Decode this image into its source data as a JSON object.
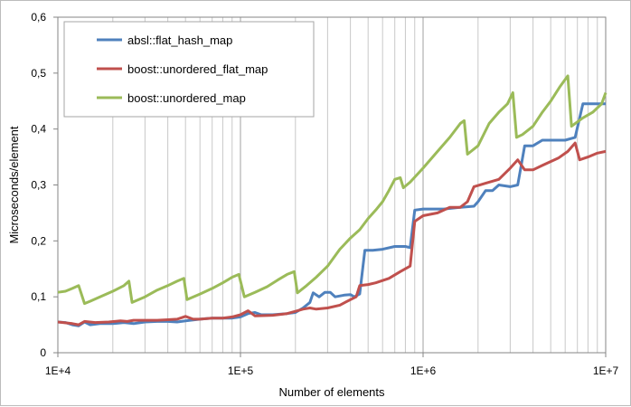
{
  "chart_data": {
    "type": "line",
    "x_scale": "log",
    "xlim": [
      10000,
      10000000
    ],
    "ylim": [
      0,
      0.6
    ],
    "xlabel": "Number of elements",
    "ylabel": "Microseconds/element",
    "x_tick_labels": [
      "1E+4",
      "1E+5",
      "1E+6",
      "1E+7"
    ],
    "y_tick_labels": [
      "0",
      "0,1",
      "0,2",
      "0,3",
      "0,4",
      "0,5",
      "0,6"
    ],
    "grid": "vertical lines at log decades and minor multiples",
    "legend_position": "top-left",
    "series": [
      {
        "name": "absl::flat_hash_map",
        "color": "#4f81bd",
        "points": [
          [
            10000,
            0.055
          ],
          [
            11000,
            0.054
          ],
          [
            12000,
            0.05
          ],
          [
            13000,
            0.048
          ],
          [
            14000,
            0.055
          ],
          [
            15000,
            0.05
          ],
          [
            17000,
            0.052
          ],
          [
            20000,
            0.052
          ],
          [
            23000,
            0.054
          ],
          [
            26000,
            0.052
          ],
          [
            30000,
            0.055
          ],
          [
            35000,
            0.056
          ],
          [
            40000,
            0.056
          ],
          [
            45000,
            0.055
          ],
          [
            50000,
            0.057
          ],
          [
            60000,
            0.06
          ],
          [
            70000,
            0.062
          ],
          [
            80000,
            0.062
          ],
          [
            90000,
            0.062
          ],
          [
            100000,
            0.064
          ],
          [
            110000,
            0.07
          ],
          [
            120000,
            0.072
          ],
          [
            130000,
            0.068
          ],
          [
            150000,
            0.068
          ],
          [
            180000,
            0.07
          ],
          [
            200000,
            0.072
          ],
          [
            220000,
            0.08
          ],
          [
            240000,
            0.09
          ],
          [
            250000,
            0.107
          ],
          [
            270000,
            0.1
          ],
          [
            290000,
            0.108
          ],
          [
            310000,
            0.108
          ],
          [
            330000,
            0.1
          ],
          [
            370000,
            0.103
          ],
          [
            400000,
            0.104
          ],
          [
            420000,
            0.1
          ],
          [
            450000,
            0.105
          ],
          [
            480000,
            0.183
          ],
          [
            530000,
            0.183
          ],
          [
            600000,
            0.185
          ],
          [
            700000,
            0.19
          ],
          [
            800000,
            0.19
          ],
          [
            850000,
            0.188
          ],
          [
            900000,
            0.255
          ],
          [
            1000000,
            0.257
          ],
          [
            1300000,
            0.257
          ],
          [
            1600000,
            0.26
          ],
          [
            1900000,
            0.262
          ],
          [
            2000000,
            0.27
          ],
          [
            2200000,
            0.29
          ],
          [
            2400000,
            0.29
          ],
          [
            2600000,
            0.3
          ],
          [
            3000000,
            0.297
          ],
          [
            3300000,
            0.3
          ],
          [
            3600000,
            0.37
          ],
          [
            4000000,
            0.37
          ],
          [
            4500000,
            0.38
          ],
          [
            6000000,
            0.38
          ],
          [
            6800000,
            0.385
          ],
          [
            7500000,
            0.445
          ],
          [
            8500000,
            0.445
          ],
          [
            10000000,
            0.445
          ]
        ]
      },
      {
        "name": "boost::unordered_flat_map",
        "color": "#c0504d",
        "points": [
          [
            10000,
            0.055
          ],
          [
            12000,
            0.052
          ],
          [
            13000,
            0.05
          ],
          [
            14000,
            0.056
          ],
          [
            16000,
            0.054
          ],
          [
            19000,
            0.055
          ],
          [
            22000,
            0.057
          ],
          [
            24000,
            0.056
          ],
          [
            26000,
            0.058
          ],
          [
            30000,
            0.058
          ],
          [
            35000,
            0.058
          ],
          [
            40000,
            0.059
          ],
          [
            45000,
            0.06
          ],
          [
            50000,
            0.065
          ],
          [
            55000,
            0.06
          ],
          [
            60000,
            0.06
          ],
          [
            70000,
            0.062
          ],
          [
            80000,
            0.062
          ],
          [
            90000,
            0.064
          ],
          [
            100000,
            0.068
          ],
          [
            110000,
            0.075
          ],
          [
            120000,
            0.066
          ],
          [
            150000,
            0.067
          ],
          [
            180000,
            0.07
          ],
          [
            200000,
            0.074
          ],
          [
            220000,
            0.078
          ],
          [
            240000,
            0.08
          ],
          [
            260000,
            0.078
          ],
          [
            300000,
            0.08
          ],
          [
            350000,
            0.085
          ],
          [
            400000,
            0.095
          ],
          [
            430000,
            0.1
          ],
          [
            450000,
            0.12
          ],
          [
            500000,
            0.122
          ],
          [
            550000,
            0.125
          ],
          [
            650000,
            0.133
          ],
          [
            750000,
            0.145
          ],
          [
            850000,
            0.155
          ],
          [
            900000,
            0.235
          ],
          [
            1000000,
            0.245
          ],
          [
            1200000,
            0.25
          ],
          [
            1400000,
            0.26
          ],
          [
            1600000,
            0.26
          ],
          [
            1750000,
            0.27
          ],
          [
            1900000,
            0.297
          ],
          [
            2200000,
            0.303
          ],
          [
            2600000,
            0.31
          ],
          [
            3000000,
            0.33
          ],
          [
            3300000,
            0.345
          ],
          [
            3600000,
            0.327
          ],
          [
            4000000,
            0.327
          ],
          [
            4500000,
            0.335
          ],
          [
            5500000,
            0.348
          ],
          [
            6200000,
            0.36
          ],
          [
            6800000,
            0.375
          ],
          [
            7200000,
            0.345
          ],
          [
            8000000,
            0.35
          ],
          [
            9000000,
            0.357
          ],
          [
            10000000,
            0.36
          ]
        ]
      },
      {
        "name": "boost::unordered_map",
        "color": "#9bbb59",
        "points": [
          [
            10000,
            0.108
          ],
          [
            11000,
            0.11
          ],
          [
            12000,
            0.115
          ],
          [
            13000,
            0.12
          ],
          [
            14000,
            0.088
          ],
          [
            15000,
            0.092
          ],
          [
            17000,
            0.1
          ],
          [
            20000,
            0.11
          ],
          [
            23000,
            0.12
          ],
          [
            24500,
            0.128
          ],
          [
            25500,
            0.09
          ],
          [
            30000,
            0.1
          ],
          [
            35000,
            0.112
          ],
          [
            40000,
            0.12
          ],
          [
            45000,
            0.128
          ],
          [
            49000,
            0.133
          ],
          [
            51000,
            0.095
          ],
          [
            60000,
            0.105
          ],
          [
            70000,
            0.115
          ],
          [
            80000,
            0.125
          ],
          [
            90000,
            0.135
          ],
          [
            98000,
            0.14
          ],
          [
            105000,
            0.1
          ],
          [
            120000,
            0.108
          ],
          [
            140000,
            0.118
          ],
          [
            160000,
            0.13
          ],
          [
            180000,
            0.14
          ],
          [
            197000,
            0.145
          ],
          [
            205000,
            0.107
          ],
          [
            230000,
            0.12
          ],
          [
            260000,
            0.135
          ],
          [
            300000,
            0.155
          ],
          [
            350000,
            0.185
          ],
          [
            400000,
            0.205
          ],
          [
            450000,
            0.22
          ],
          [
            500000,
            0.24
          ],
          [
            550000,
            0.255
          ],
          [
            600000,
            0.27
          ],
          [
            650000,
            0.29
          ],
          [
            700000,
            0.31
          ],
          [
            750000,
            0.313
          ],
          [
            780000,
            0.295
          ],
          [
            850000,
            0.305
          ],
          [
            1000000,
            0.33
          ],
          [
            1200000,
            0.36
          ],
          [
            1400000,
            0.385
          ],
          [
            1600000,
            0.41
          ],
          [
            1680000,
            0.415
          ],
          [
            1750000,
            0.355
          ],
          [
            2000000,
            0.37
          ],
          [
            2300000,
            0.41
          ],
          [
            2600000,
            0.43
          ],
          [
            2900000,
            0.445
          ],
          [
            3100000,
            0.465
          ],
          [
            3250000,
            0.385
          ],
          [
            3500000,
            0.39
          ],
          [
            4000000,
            0.405
          ],
          [
            4500000,
            0.43
          ],
          [
            5000000,
            0.45
          ],
          [
            5600000,
            0.475
          ],
          [
            6200000,
            0.495
          ],
          [
            6500000,
            0.405
          ],
          [
            7500000,
            0.42
          ],
          [
            8500000,
            0.43
          ],
          [
            9500000,
            0.445
          ],
          [
            10000000,
            0.465
          ]
        ]
      }
    ]
  }
}
